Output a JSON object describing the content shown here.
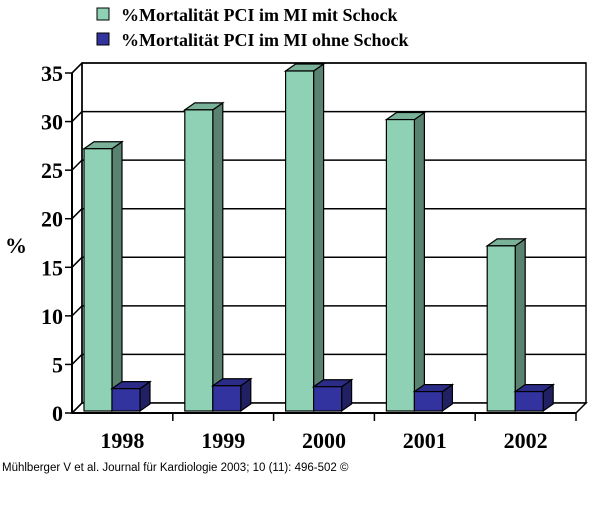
{
  "chart_data": {
    "type": "bar",
    "title": "",
    "xlabel": "",
    "ylabel": "%",
    "ylim": [
      0,
      35
    ],
    "yticks": [
      0,
      5,
      10,
      15,
      20,
      25,
      30,
      35
    ],
    "grid": true,
    "legend_position": "top",
    "categories": [
      "1998",
      "1999",
      "2000",
      "2001",
      "2002"
    ],
    "series": [
      {
        "name": "%Mortalität PCI im MI mit Schock",
        "values": [
          27,
          31,
          35,
          30,
          17
        ],
        "color": "#8FD1B4"
      },
      {
        "name": "%Mortalität PCI im MI ohne Schock",
        "values": [
          2.3,
          2.6,
          2.5,
          2.0,
          2.0
        ],
        "color": "#3333A0"
      }
    ]
  },
  "source": "Mühlberger V et al. Journal für Kardiologie 2003; 10 (11): 496-502 ©"
}
